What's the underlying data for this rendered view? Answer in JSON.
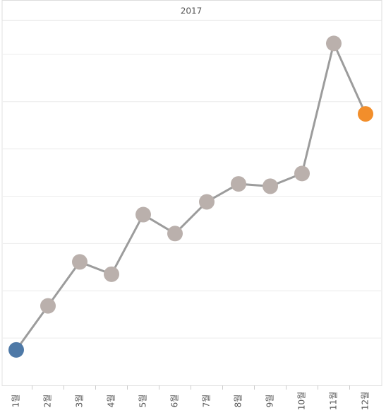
{
  "chart_data": {
    "type": "line",
    "header": "2017",
    "categories": [
      "1월",
      "2월",
      "3월",
      "4월",
      "5월",
      "6월",
      "7월",
      "8월",
      "9월",
      "10월",
      "11월",
      "12월"
    ],
    "values": [
      0.75,
      1.68,
      2.61,
      2.35,
      3.61,
      3.21,
      3.88,
      4.26,
      4.21,
      4.48,
      7.23,
      5.74
    ],
    "color": "#9c9c9c",
    "point_colors": [
      "#4e79a7",
      "#bab0ac",
      "#bab0ac",
      "#bab0ac",
      "#bab0ac",
      "#bab0ac",
      "#bab0ac",
      "#bab0ac",
      "#bab0ac",
      "#bab0ac",
      "#bab0ac",
      "#f28e2b"
    ],
    "ylim": [
      0,
      7.7
    ],
    "yticks": [
      1,
      2,
      3,
      4,
      5,
      6,
      7
    ],
    "grid": true
  }
}
